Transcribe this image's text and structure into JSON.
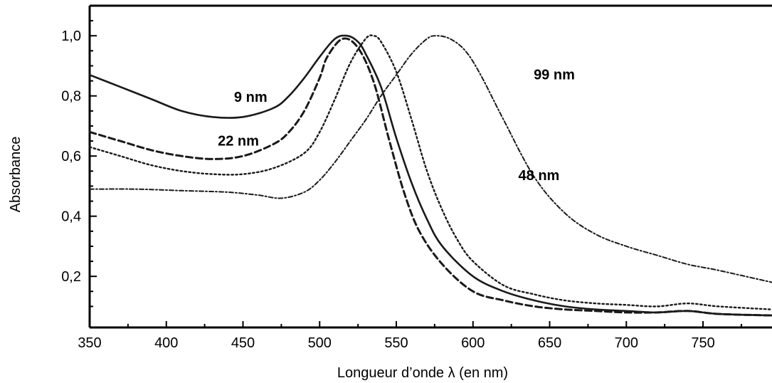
{
  "chart_data": {
    "type": "line",
    "title": "",
    "xlabel": "Longueur d’onde λ (en nm)",
    "ylabel": "Absorbance",
    "xlim": [
      350,
      795
    ],
    "ylim": [
      0.03,
      1.1
    ],
    "x_ticks": [
      350,
      400,
      450,
      500,
      550,
      600,
      650,
      700,
      750
    ],
    "x_tick_labels": [
      "350",
      "400",
      "450",
      "500",
      "550",
      "600",
      "650",
      "700",
      "750"
    ],
    "y_ticks": [
      0.2,
      0.4,
      0.6,
      0.8,
      1.0
    ],
    "y_tick_labels": [
      "0,2",
      "0,4",
      "0,6",
      "0,8",
      "1,0"
    ],
    "grid": false,
    "legend": "none",
    "series": [
      {
        "name": "9 nm",
        "style": "solid",
        "x": [
          350,
          370,
          390,
          410,
          430,
          450,
          470,
          480,
          490,
          500,
          510,
          518,
          525,
          530,
          540,
          550,
          560,
          570,
          580,
          600,
          620,
          640,
          660,
          680,
          700,
          720,
          740,
          760,
          795
        ],
        "y": [
          0.87,
          0.83,
          0.79,
          0.75,
          0.73,
          0.73,
          0.76,
          0.8,
          0.86,
          0.93,
          0.99,
          1.0,
          0.98,
          0.94,
          0.83,
          0.66,
          0.51,
          0.39,
          0.3,
          0.2,
          0.15,
          0.12,
          0.1,
          0.09,
          0.085,
          0.08,
          0.085,
          0.075,
          0.07
        ]
      },
      {
        "name": "22 nm",
        "style": "dashed",
        "x": [
          350,
          370,
          390,
          410,
          430,
          450,
          470,
          480,
          490,
          500,
          505,
          515,
          525,
          535,
          545,
          555,
          565,
          580,
          600,
          620,
          640,
          660,
          680,
          700,
          720,
          740,
          760,
          795
        ],
        "y": [
          0.68,
          0.65,
          0.62,
          0.6,
          0.59,
          0.6,
          0.64,
          0.68,
          0.75,
          0.86,
          0.93,
          0.99,
          0.96,
          0.85,
          0.66,
          0.48,
          0.35,
          0.24,
          0.15,
          0.12,
          0.1,
          0.09,
          0.085,
          0.08,
          0.08,
          0.085,
          0.075,
          0.07
        ]
      },
      {
        "name": "48 nm",
        "style": "dotted",
        "x": [
          350,
          370,
          390,
          410,
          430,
          450,
          470,
          490,
          500,
          510,
          520,
          530,
          535,
          540,
          550,
          560,
          570,
          580,
          590,
          600,
          620,
          640,
          660,
          680,
          700,
          720,
          740,
          760,
          795
        ],
        "y": [
          0.63,
          0.6,
          0.57,
          0.55,
          0.54,
          0.54,
          0.56,
          0.61,
          0.68,
          0.79,
          0.91,
          0.99,
          1.0,
          0.98,
          0.88,
          0.72,
          0.55,
          0.42,
          0.32,
          0.25,
          0.17,
          0.14,
          0.12,
          0.11,
          0.105,
          0.1,
          0.11,
          0.1,
          0.09
        ]
      },
      {
        "name": "99 nm",
        "style": "dash-dot",
        "x": [
          350,
          380,
          410,
          440,
          460,
          475,
          490,
          500,
          510,
          520,
          530,
          540,
          550,
          560,
          570,
          576,
          585,
          595,
          605,
          620,
          640,
          660,
          680,
          700,
          720,
          740,
          760,
          795
        ],
        "y": [
          0.49,
          0.49,
          0.485,
          0.48,
          0.47,
          0.46,
          0.48,
          0.52,
          0.58,
          0.65,
          0.72,
          0.8,
          0.87,
          0.94,
          0.99,
          1.0,
          0.99,
          0.95,
          0.87,
          0.72,
          0.53,
          0.41,
          0.34,
          0.3,
          0.27,
          0.24,
          0.22,
          0.18
        ]
      }
    ],
    "annotations": [
      {
        "text": "9 nm",
        "series": "9 nm",
        "x": 455,
        "y": 0.78
      },
      {
        "text": "22 nm",
        "series": "22 nm",
        "x": 447,
        "y": 0.635
      },
      {
        "text": "48 nm",
        "series": "48 nm",
        "x": 643,
        "y": 0.52
      },
      {
        "text": "99 nm",
        "series": "99 nm",
        "x": 653,
        "y": 0.855
      }
    ]
  }
}
